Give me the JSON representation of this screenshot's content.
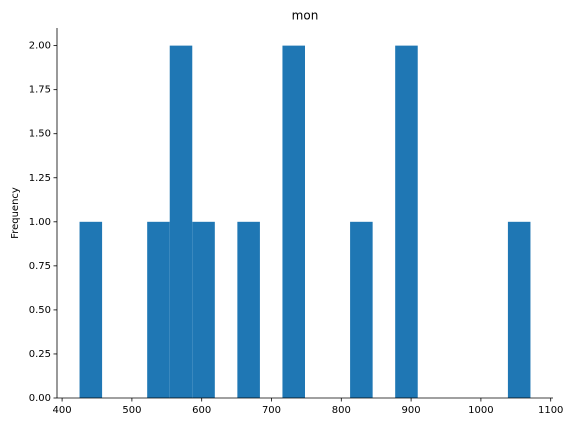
{
  "chart_data": {
    "type": "histogram",
    "title": "mon",
    "y_label": "Frequency",
    "color": "#1f77b4",
    "bins": [
      425,
      457.3,
      489.6,
      521.9,
      554.2,
      586.5,
      618.8,
      651.1,
      683.4,
      715.7,
      748,
      780.3,
      812.6,
      844.9,
      877.2,
      909.5,
      941.8,
      974.1,
      1006.4,
      1038.7,
      1071
    ],
    "values": [
      1,
      0,
      0,
      1,
      2,
      1,
      0,
      1,
      0,
      2,
      0,
      0,
      1,
      0,
      2,
      0,
      0,
      0,
      0,
      1
    ],
    "xlim": [
      392.7,
      1103.3
    ],
    "xticks": [
      400,
      500,
      600,
      700,
      800,
      900,
      1000,
      1100
    ],
    "ylim": [
      0,
      2.1
    ],
    "yticks": [
      {
        "value": 0,
        "label": "0.00"
      },
      {
        "value": 0.25,
        "label": "0.25"
      },
      {
        "value": 0.5,
        "label": "0.50"
      },
      {
        "value": 0.75,
        "label": "0.75"
      },
      {
        "value": 1,
        "label": "1.00"
      },
      {
        "value": 1.25,
        "label": "1.25"
      },
      {
        "value": 1.5,
        "label": "1.50"
      },
      {
        "value": 1.75,
        "label": "1.75"
      },
      {
        "value": 2,
        "label": "2.00"
      }
    ]
  }
}
